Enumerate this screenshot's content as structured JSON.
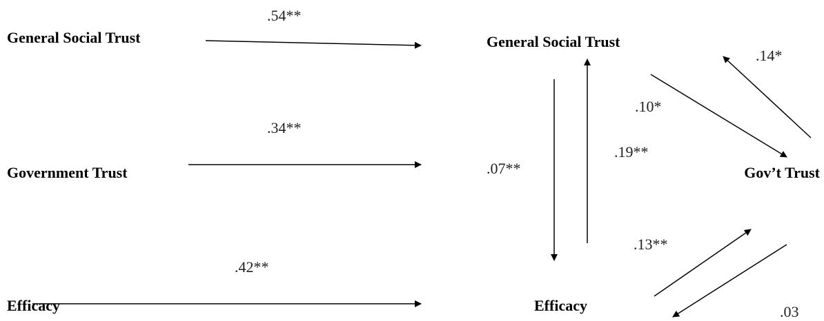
{
  "left_model": {
    "nodes": [
      "General Social Trust",
      "Government Trust",
      "Efficacy"
    ],
    "paths": [
      ".54**",
      ".34**",
      ".42**"
    ]
  },
  "right_model": {
    "nodes": {
      "social_trust": "General Social Trust",
      "gov_trust": "Gov’t Trust",
      "efficacy": "Efficacy"
    },
    "paths": {
      "social_to_efficacy": ".07**",
      "efficacy_to_social": ".19**",
      "social_to_gov": ".10*",
      "gov_to_social": ".14*",
      "efficacy_to_gov": ".13**",
      "gov_to_efficacy": ".03"
    }
  }
}
